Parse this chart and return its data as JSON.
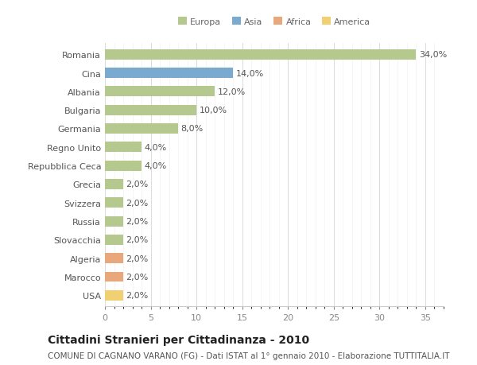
{
  "categories": [
    "Romania",
    "Cina",
    "Albania",
    "Bulgaria",
    "Germania",
    "Regno Unito",
    "Repubblica Ceca",
    "Grecia",
    "Svizzera",
    "Russia",
    "Slovacchia",
    "Algeria",
    "Marocco",
    "USA"
  ],
  "values": [
    34.0,
    14.0,
    12.0,
    10.0,
    8.0,
    4.0,
    4.0,
    2.0,
    2.0,
    2.0,
    2.0,
    2.0,
    2.0,
    2.0
  ],
  "colors": [
    "#b5c98e",
    "#7aabcf",
    "#b5c98e",
    "#b5c98e",
    "#b5c98e",
    "#b5c98e",
    "#b5c98e",
    "#b5c98e",
    "#b5c98e",
    "#b5c98e",
    "#b5c98e",
    "#e8a87c",
    "#e8a87c",
    "#f0d070"
  ],
  "legend_labels": [
    "Europa",
    "Asia",
    "Africa",
    "America"
  ],
  "legend_colors": [
    "#b5c98e",
    "#7aabcf",
    "#e8a87c",
    "#f0d070"
  ],
  "title": "Cittadini Stranieri per Cittadinanza - 2010",
  "subtitle": "COMUNE DI CAGNANO VARANO (FG) - Dati ISTAT al 1° gennaio 2010 - Elaborazione TUTTITALIA.IT",
  "xlim": [
    0,
    37
  ],
  "xticks": [
    0,
    5,
    10,
    15,
    20,
    25,
    30,
    35
  ],
  "background_color": "#ffffff",
  "plot_bg_color": "#ffffff",
  "bar_height": 0.55,
  "title_fontsize": 10,
  "subtitle_fontsize": 7.5,
  "tick_fontsize": 8,
  "value_fontsize": 8
}
